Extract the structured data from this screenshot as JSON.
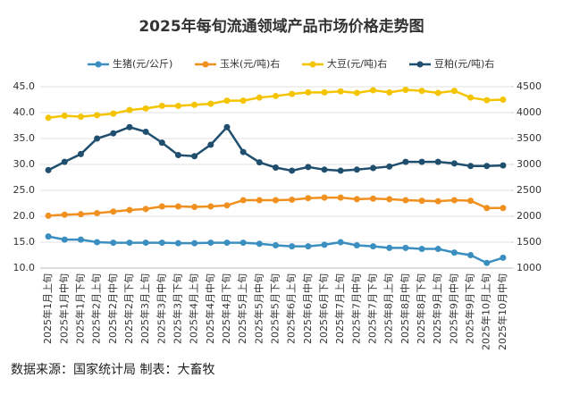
{
  "chart_data": {
    "type": "line",
    "title": "2025年每旬流通领域产品市场价格走势图",
    "categories": [
      "2025年1月上旬",
      "2025年1月中旬",
      "2025年1月下旬",
      "2025年2月上旬",
      "2025年2月中旬",
      "2025年2月下旬",
      "2025年3月上旬",
      "2025年3月中旬",
      "2025年3月下旬",
      "2025年4月上旬",
      "2025年4月中旬",
      "2025年4月下旬",
      "2025年5月上旬",
      "2025年5月中旬",
      "2025年5月下旬",
      "2025年6月上旬",
      "2025年6月中旬",
      "2025年6月下旬",
      "2025年7月上旬",
      "2025年7月中旬",
      "2025年7月下旬",
      "2025年8月上旬",
      "2025年8月中旬",
      "2025年8月下旬",
      "2025年9月上旬",
      "2025年9月中旬",
      "2025年9月下旬",
      "2025年10月上旬",
      "2025年10月中旬"
    ],
    "series": [
      {
        "name": "生猪(元/公斤)",
        "color": "#3a8fc0",
        "values": [
          16.1,
          15.5,
          15.5,
          15.0,
          14.9,
          14.9,
          14.9,
          14.9,
          14.8,
          14.8,
          14.9,
          14.9,
          14.9,
          14.7,
          14.4,
          14.2,
          14.2,
          14.5,
          15.0,
          14.4,
          14.2,
          13.9,
          13.9,
          13.7,
          13.7,
          13.0,
          12.5,
          11.0,
          12.0
        ]
      },
      {
        "name": "玉米(元/吨)右",
        "color": "#f0901e",
        "axis": "y2",
        "values": [
          2010,
          2030,
          2040,
          2060,
          2090,
          2120,
          2140,
          2190,
          2190,
          2180,
          2190,
          2210,
          2310,
          2310,
          2310,
          2320,
          2350,
          2360,
          2360,
          2330,
          2340,
          2330,
          2310,
          2300,
          2290,
          2310,
          2300,
          2160,
          2160
        ]
      },
      {
        "name": "大豆(元/吨)右",
        "color": "#f5c400",
        "axis": "y2",
        "values": [
          3900,
          3940,
          3920,
          3950,
          3980,
          4050,
          4080,
          4130,
          4130,
          4150,
          4170,
          4230,
          4230,
          4290,
          4320,
          4360,
          4390,
          4390,
          4410,
          4380,
          4430,
          4390,
          4440,
          4420,
          4380,
          4420,
          4290,
          4240,
          4250
        ]
      },
      {
        "name": "豆粕(元/吨)右",
        "color": "#1f4e6e",
        "axis": "y2",
        "values": [
          2890,
          3050,
          3200,
          3500,
          3600,
          3720,
          3630,
          3420,
          3180,
          3160,
          3380,
          3720,
          3240,
          3040,
          2940,
          2880,
          2950,
          2900,
          2880,
          2900,
          2930,
          2960,
          3050,
          3050,
          3050,
          3020,
          2970,
          2970,
          2980
        ]
      }
    ],
    "ylim": [
      10,
      45
    ],
    "yticks": [
      {
        "value": 10,
        "label": "10.0"
      },
      {
        "value": 15,
        "label": "15.0"
      },
      {
        "value": 20,
        "label": "20.0"
      },
      {
        "value": 25,
        "label": "25.0"
      },
      {
        "value": 30,
        "label": "30.0"
      },
      {
        "value": 35,
        "label": "35.0"
      },
      {
        "value": 40,
        "label": "40.0"
      },
      {
        "value": 45,
        "label": "45.0"
      }
    ],
    "y2lim": [
      1000,
      4500
    ],
    "y2ticks": [
      1000,
      1500,
      2000,
      2500,
      3000,
      3500,
      4000,
      4500
    ],
    "grid": true,
    "legend": "top",
    "source": "数据来源：国家统计局  制表：大畜牧"
  }
}
